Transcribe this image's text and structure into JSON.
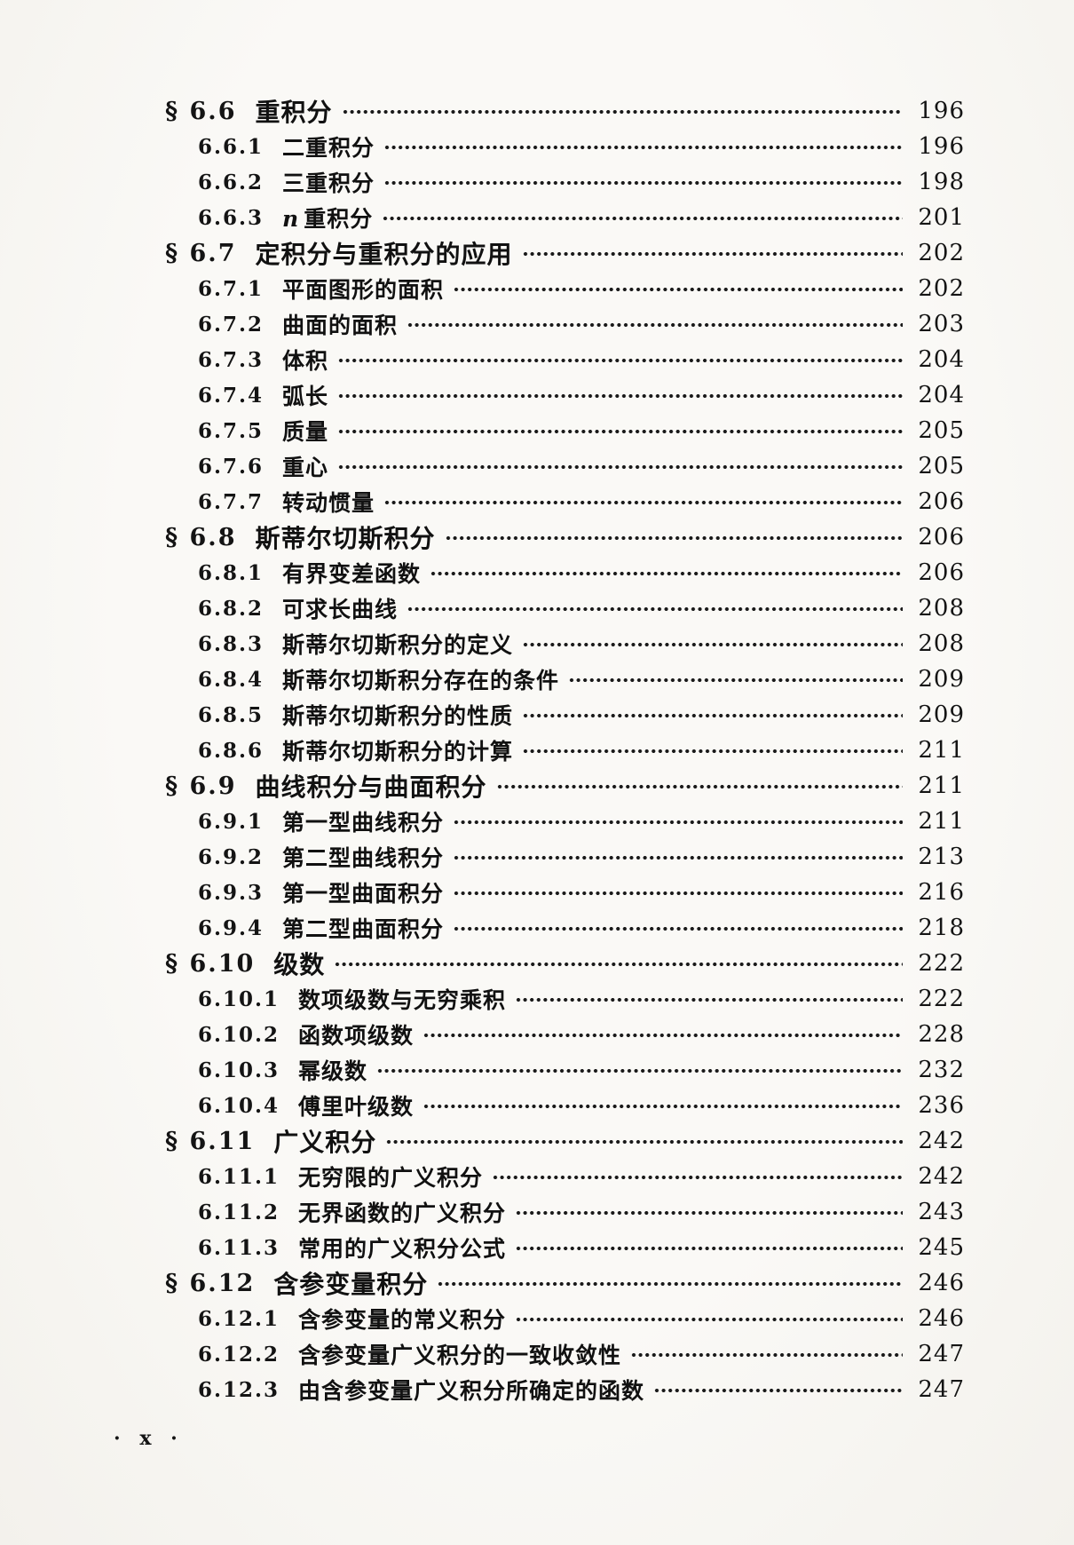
{
  "page": {
    "paper_color": "#f7f6f3",
    "ink_color": "#161616"
  },
  "toc": {
    "entries": [
      {
        "level": "sec",
        "num": "§ 6.6",
        "title": "重积分",
        "page": "196"
      },
      {
        "level": "sub",
        "num": "6.6.1",
        "title": "二重积分",
        "page": "196"
      },
      {
        "level": "sub",
        "num": "6.6.2",
        "title": "三重积分",
        "page": "198"
      },
      {
        "level": "sub",
        "num": "6.6.3",
        "italic": "n",
        "title": "重积分",
        "page": "201"
      },
      {
        "level": "sec",
        "num": "§ 6.7",
        "title": "定积分与重积分的应用",
        "page": "202"
      },
      {
        "level": "sub",
        "num": "6.7.1",
        "title": "平面图形的面积",
        "page": "202"
      },
      {
        "level": "sub",
        "num": "6.7.2",
        "title": "曲面的面积",
        "page": "203"
      },
      {
        "level": "sub",
        "num": "6.7.3",
        "title": "体积",
        "page": "204"
      },
      {
        "level": "sub",
        "num": "6.7.4",
        "title": "弧长",
        "page": "204"
      },
      {
        "level": "sub",
        "num": "6.7.5",
        "title": "质量",
        "page": "205"
      },
      {
        "level": "sub",
        "num": "6.7.6",
        "title": "重心",
        "page": "205"
      },
      {
        "level": "sub",
        "num": "6.7.7",
        "title": "转动惯量",
        "page": "206"
      },
      {
        "level": "sec",
        "num": "§ 6.8",
        "title": "斯蒂尔切斯积分",
        "page": "206"
      },
      {
        "level": "sub",
        "num": "6.8.1",
        "title": "有界变差函数",
        "page": "206"
      },
      {
        "level": "sub",
        "num": "6.8.2",
        "title": "可求长曲线",
        "page": "208"
      },
      {
        "level": "sub",
        "num": "6.8.3",
        "title": "斯蒂尔切斯积分的定义",
        "page": "208"
      },
      {
        "level": "sub",
        "num": "6.8.4",
        "title": "斯蒂尔切斯积分存在的条件",
        "page": "209"
      },
      {
        "level": "sub",
        "num": "6.8.5",
        "title": "斯蒂尔切斯积分的性质",
        "page": "209"
      },
      {
        "level": "sub",
        "num": "6.8.6",
        "title": "斯蒂尔切斯积分的计算",
        "page": "211"
      },
      {
        "level": "sec",
        "num": "§ 6.9",
        "title": "曲线积分与曲面积分",
        "page": "211"
      },
      {
        "level": "sub",
        "num": "6.9.1",
        "title": "第一型曲线积分",
        "page": "211"
      },
      {
        "level": "sub",
        "num": "6.9.2",
        "title": "第二型曲线积分",
        "page": "213"
      },
      {
        "level": "sub",
        "num": "6.9.3",
        "title": "第一型曲面积分",
        "page": "216"
      },
      {
        "level": "sub",
        "num": "6.9.4",
        "title": "第二型曲面积分",
        "page": "218"
      },
      {
        "level": "sec",
        "num": "§ 6.10",
        "title": "级数",
        "page": "222"
      },
      {
        "level": "sub",
        "num": "6.10.1",
        "title": "数项级数与无穷乘积",
        "page": "222"
      },
      {
        "level": "sub",
        "num": "6.10.2",
        "title": "函数项级数",
        "page": "228"
      },
      {
        "level": "sub",
        "num": "6.10.3",
        "title": "幂级数",
        "page": "232"
      },
      {
        "level": "sub",
        "num": "6.10.4",
        "title": "傅里叶级数",
        "page": "236"
      },
      {
        "level": "sec",
        "num": "§ 6.11",
        "title": "广义积分",
        "page": "242"
      },
      {
        "level": "sub",
        "num": "6.11.1",
        "title": "无穷限的广义积分",
        "page": "242"
      },
      {
        "level": "sub",
        "num": "6.11.2",
        "title": "无界函数的广义积分",
        "page": "243"
      },
      {
        "level": "sub",
        "num": "6.11.3",
        "title": "常用的广义积分公式",
        "page": "245"
      },
      {
        "level": "sec",
        "num": "§ 6.12",
        "title": "含参变量积分",
        "page": "246"
      },
      {
        "level": "sub",
        "num": "6.12.1",
        "title": "含参变量的常义积分",
        "page": "246"
      },
      {
        "level": "sub",
        "num": "6.12.2",
        "title": "含参变量广义积分的一致收敛性",
        "page": "247"
      },
      {
        "level": "sub",
        "num": "6.12.3",
        "title": "由含参变量广义积分所确定的函数",
        "page": "247"
      }
    ]
  },
  "footer": {
    "folio": "· x ·"
  }
}
